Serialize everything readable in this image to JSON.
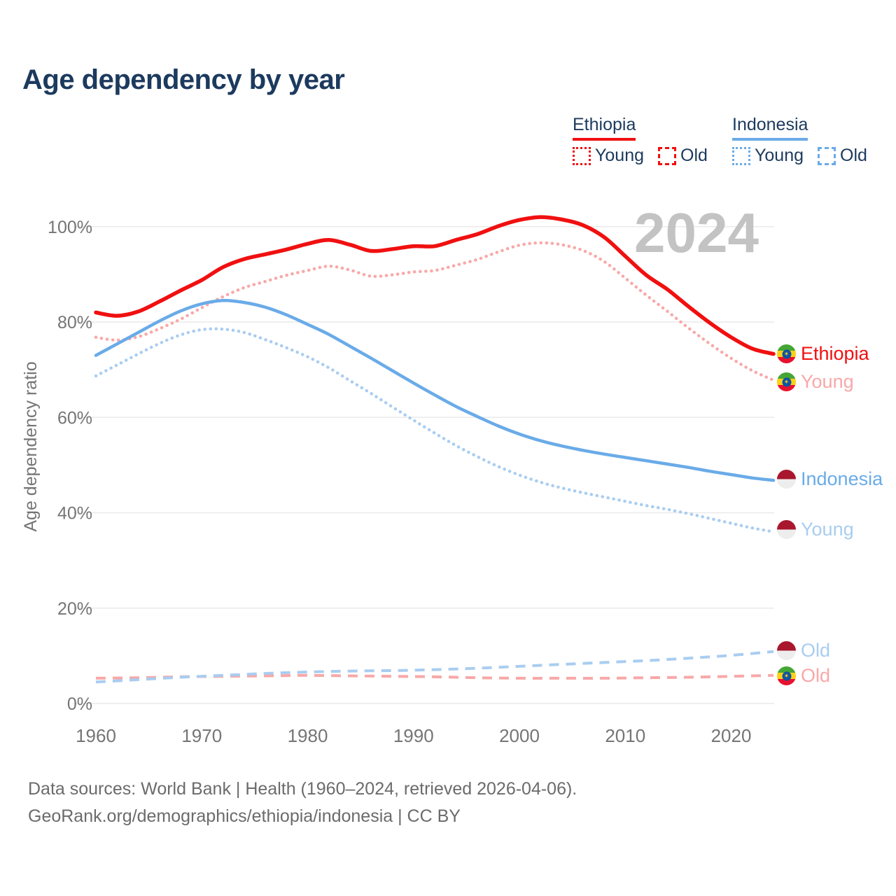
{
  "title": "Age dependency by year",
  "watermark": "2024",
  "colors": {
    "ethiopia": "#f01010",
    "ethiopia_light": "#f8a8a8",
    "indonesia": "#6aabe8",
    "indonesia_light": "#a9cdf0",
    "title_text": "#1c3a5e",
    "axis_text": "#757575",
    "gridline": "#eaeaea",
    "watermark": "#c3c3c3"
  },
  "legend": {
    "groups": [
      {
        "name": "Ethiopia",
        "color": "#f01010",
        "items": [
          {
            "label": "Young",
            "style": "dotted"
          },
          {
            "label": "Old",
            "style": "dashed"
          }
        ]
      },
      {
        "name": "Indonesia",
        "color": "#6aabe8",
        "items": [
          {
            "label": "Young",
            "style": "dotted"
          },
          {
            "label": "Old",
            "style": "dashed"
          }
        ]
      }
    ]
  },
  "right_labels": [
    {
      "text": "Ethiopia",
      "flag": "ethiopia",
      "color": "#f01010"
    },
    {
      "text": "Young",
      "flag": "ethiopia",
      "color": "#f8a8a8"
    },
    {
      "text": "Indonesia",
      "flag": "indonesia",
      "color": "#6aabe8"
    },
    {
      "text": "Young",
      "flag": "indonesia",
      "color": "#a9cdf0"
    },
    {
      "text": "Old",
      "flag": "indonesia",
      "color": "#a9cdf0"
    },
    {
      "text": "Old",
      "flag": "ethiopia",
      "color": "#f8a8a8"
    }
  ],
  "footer": {
    "line1": "Data sources: World Bank | Health (1960–2024, retrieved 2026-04-06).",
    "line2": "GeoRank.org/demographics/ethiopia/indonesia | CC BY"
  },
  "chart_data": {
    "type": "line",
    "title": "Age dependency by year",
    "xlabel": "",
    "ylabel": "Age dependency ratio",
    "xlim": [
      1960,
      2024
    ],
    "ylim": [
      0,
      105
    ],
    "grid": true,
    "legend_position": "top-right",
    "x_ticks": [
      1960,
      1970,
      1980,
      1990,
      2000,
      2010,
      2020
    ],
    "y_ticks": [
      0,
      20,
      40,
      60,
      80,
      100
    ],
    "y_tick_suffix": "%",
    "series": [
      {
        "name": "Ethiopia",
        "country": "Ethiopia",
        "measure": "total",
        "style": "solid",
        "color": "#f01010",
        "width": 5.5,
        "x": [
          1960,
          1962,
          1964,
          1966,
          1968,
          1970,
          1972,
          1974,
          1976,
          1978,
          1980,
          1982,
          1984,
          1986,
          1988,
          1990,
          1992,
          1994,
          1996,
          1998,
          2000,
          2002,
          2004,
          2006,
          2008,
          2010,
          2012,
          2014,
          2016,
          2018,
          2020,
          2022,
          2024
        ],
        "values": [
          82.0,
          81.3,
          82.2,
          84.3,
          86.6,
          88.8,
          91.5,
          93.2,
          94.2,
          95.2,
          96.4,
          97.2,
          96.2,
          94.9,
          95.3,
          95.9,
          95.9,
          97.2,
          98.4,
          100.1,
          101.4,
          102.0,
          101.5,
          100.3,
          97.8,
          93.8,
          89.8,
          86.8,
          83.2,
          79.8,
          76.8,
          74.4,
          73.3
        ]
      },
      {
        "name": "Ethiopia Young",
        "country": "Ethiopia",
        "measure": "young",
        "style": "dotted",
        "color": "#f8a8a8",
        "width": 4.5,
        "x": [
          1960,
          1962,
          1964,
          1966,
          1968,
          1970,
          1972,
          1974,
          1976,
          1978,
          1980,
          1982,
          1984,
          1986,
          1988,
          1990,
          1992,
          1994,
          1996,
          1998,
          2000,
          2002,
          2004,
          2006,
          2008,
          2010,
          2012,
          2014,
          2016,
          2018,
          2020,
          2022,
          2024
        ],
        "values": [
          76.8,
          76.2,
          76.9,
          78.6,
          80.6,
          83.0,
          85.3,
          87.2,
          88.5,
          89.8,
          90.8,
          91.7,
          90.9,
          89.6,
          89.9,
          90.5,
          90.8,
          91.9,
          93.1,
          94.7,
          96.1,
          96.6,
          96.2,
          95.0,
          92.7,
          89.2,
          85.6,
          82.2,
          78.7,
          75.4,
          72.4,
          69.8,
          67.8
        ]
      },
      {
        "name": "Ethiopia Old",
        "country": "Ethiopia",
        "measure": "old",
        "style": "dashed",
        "color": "#f8a8a8",
        "width": 4,
        "x": [
          1960,
          1964,
          1968,
          1972,
          1976,
          1980,
          1984,
          1988,
          1992,
          1996,
          2000,
          2004,
          2008,
          2012,
          2016,
          2020,
          2024
        ],
        "values": [
          5.3,
          5.4,
          5.6,
          5.7,
          5.8,
          5.9,
          5.8,
          5.7,
          5.6,
          5.4,
          5.3,
          5.3,
          5.3,
          5.4,
          5.5,
          5.7,
          5.9
        ]
      },
      {
        "name": "Indonesia",
        "country": "Indonesia",
        "measure": "total",
        "style": "solid",
        "color": "#6aabe8",
        "width": 4.5,
        "x": [
          1960,
          1962,
          1964,
          1966,
          1968,
          1970,
          1972,
          1974,
          1976,
          1978,
          1980,
          1982,
          1984,
          1986,
          1988,
          1990,
          1992,
          1994,
          1996,
          1998,
          2000,
          2002,
          2004,
          2006,
          2008,
          2010,
          2012,
          2014,
          2016,
          2018,
          2020,
          2022,
          2024
        ],
        "values": [
          73.0,
          75.4,
          77.8,
          80.2,
          82.3,
          83.8,
          84.5,
          84.1,
          83.1,
          81.5,
          79.5,
          77.4,
          74.9,
          72.4,
          69.8,
          67.2,
          64.7,
          62.3,
          60.2,
          58.2,
          56.5,
          55.1,
          54.0,
          53.1,
          52.3,
          51.6,
          50.9,
          50.2,
          49.5,
          48.7,
          48.0,
          47.3,
          46.8
        ]
      },
      {
        "name": "Indonesia Young",
        "country": "Indonesia",
        "measure": "young",
        "style": "dotted",
        "color": "#a9cdf0",
        "width": 4.5,
        "x": [
          1960,
          1962,
          1964,
          1966,
          1968,
          1970,
          1972,
          1974,
          1976,
          1978,
          1980,
          1982,
          1984,
          1986,
          1988,
          1990,
          1992,
          1994,
          1996,
          1998,
          2000,
          2002,
          2004,
          2006,
          2008,
          2010,
          2012,
          2014,
          2016,
          2018,
          2020,
          2022,
          2024
        ],
        "values": [
          68.7,
          71.0,
          73.3,
          75.5,
          77.3,
          78.4,
          78.5,
          77.8,
          76.3,
          74.6,
          72.7,
          70.4,
          67.7,
          65.0,
          62.2,
          59.4,
          56.7,
          54.1,
          51.8,
          49.7,
          47.9,
          46.4,
          45.2,
          44.2,
          43.3,
          42.4,
          41.5,
          40.7,
          39.8,
          38.8,
          37.8,
          36.8,
          36.0
        ]
      },
      {
        "name": "Indonesia Old",
        "country": "Indonesia",
        "measure": "old",
        "style": "dashed",
        "color": "#a9cdf0",
        "width": 4,
        "x": [
          1960,
          1964,
          1968,
          1972,
          1976,
          1980,
          1984,
          1988,
          1992,
          1996,
          2000,
          2004,
          2008,
          2012,
          2016,
          2020,
          2024
        ],
        "values": [
          4.5,
          5.0,
          5.5,
          5.9,
          6.3,
          6.6,
          6.8,
          6.9,
          7.1,
          7.4,
          7.8,
          8.2,
          8.6,
          9.0,
          9.5,
          10.1,
          10.9
        ]
      }
    ]
  }
}
